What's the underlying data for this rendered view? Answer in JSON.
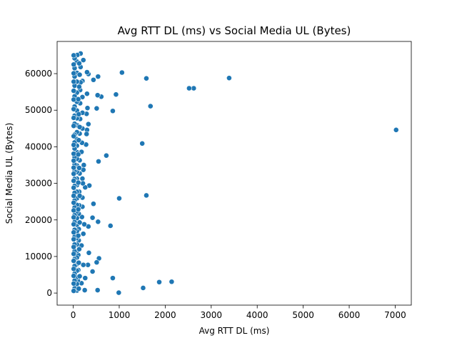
{
  "chart_data": {
    "type": "scatter",
    "title": "Avg RTT DL (ms) vs Social Media UL (Bytes)",
    "xlabel": "Avg RTT DL (ms)",
    "ylabel": "Social Media UL (Bytes)",
    "xlim": [
      -350,
      7350
    ],
    "ylim": [
      -3300,
      68800
    ],
    "xticks": [
      0,
      1000,
      2000,
      3000,
      4000,
      5000,
      6000,
      7000
    ],
    "yticks": [
      0,
      10000,
      20000,
      30000,
      40000,
      50000,
      60000
    ],
    "grid": false,
    "marker_color": "#1f77b4",
    "series": [
      {
        "values": [
          [
            7020,
            44600
          ],
          [
            3390,
            58800
          ],
          [
            2620,
            56000
          ],
          [
            2520,
            56000
          ],
          [
            1680,
            51100
          ],
          [
            1590,
            58700
          ],
          [
            1060,
            60300
          ],
          [
            860,
            49800
          ],
          [
            930,
            54300
          ],
          [
            1500,
            40900
          ],
          [
            1590,
            26700
          ],
          [
            1000,
            25900
          ],
          [
            720,
            37600
          ],
          [
            550,
            36000
          ],
          [
            2140,
            3100
          ],
          [
            1870,
            3000
          ],
          [
            1520,
            1400
          ],
          [
            990,
            100
          ],
          [
            860,
            4100
          ],
          [
            530,
            800
          ],
          [
            810,
            18400
          ],
          [
            540,
            19500
          ],
          [
            420,
            20600
          ],
          [
            330,
            18200
          ],
          [
            240,
            18800
          ],
          [
            440,
            24400
          ],
          [
            350,
            29400
          ],
          [
            260,
            28900
          ],
          [
            200,
            31300
          ],
          [
            560,
            9500
          ],
          [
            510,
            8400
          ],
          [
            420,
            5900
          ],
          [
            340,
            11000
          ],
          [
            320,
            7700
          ],
          [
            260,
            4100
          ],
          [
            220,
            7700
          ],
          [
            250,
            800
          ],
          [
            220,
            16200
          ],
          [
            180,
            13000
          ],
          [
            180,
            2700
          ],
          [
            610,
            53700
          ],
          [
            530,
            54100
          ],
          [
            510,
            50500
          ],
          [
            440,
            58300
          ],
          [
            540,
            59200
          ],
          [
            330,
            59900
          ],
          [
            300,
            60400
          ],
          [
            300,
            54500
          ],
          [
            310,
            50600
          ],
          [
            290,
            49000
          ],
          [
            330,
            46200
          ],
          [
            300,
            44600
          ],
          [
            290,
            43500
          ],
          [
            280,
            40600
          ],
          [
            220,
            63700
          ],
          [
            200,
            58000
          ],
          [
            200,
            53600
          ],
          [
            200,
            49300
          ],
          [
            200,
            45000
          ],
          [
            190,
            41100
          ],
          [
            230,
            35000
          ],
          [
            220,
            33700
          ],
          [
            210,
            30000
          ],
          [
            200,
            26100
          ],
          [
            200,
            23600
          ],
          [
            190,
            20800
          ],
          [
            180,
            38600
          ],
          [
            160,
            65500
          ],
          [
            160,
            61800
          ],
          [
            160,
            57600
          ],
          [
            150,
            55500
          ],
          [
            150,
            51900
          ],
          [
            150,
            47600
          ],
          [
            140,
            43600
          ],
          [
            140,
            36300
          ],
          [
            140,
            32700
          ],
          [
            130,
            27700
          ],
          [
            130,
            24000
          ],
          [
            120,
            21700
          ],
          [
            120,
            17500
          ],
          [
            120,
            14400
          ],
          [
            110,
            10400
          ],
          [
            110,
            6300
          ],
          [
            100,
            3400
          ],
          [
            90,
            65100
          ],
          [
            80,
            63300
          ],
          [
            80,
            60200
          ],
          [
            80,
            57800
          ],
          [
            80,
            54800
          ],
          [
            80,
            52300
          ],
          [
            80,
            49900
          ],
          [
            80,
            47800
          ],
          [
            80,
            45900
          ],
          [
            80,
            44000
          ],
          [
            80,
            42100
          ],
          [
            80,
            40300
          ],
          [
            80,
            38500
          ],
          [
            80,
            36700
          ],
          [
            80,
            34900
          ],
          [
            80,
            33100
          ],
          [
            80,
            31300
          ],
          [
            80,
            29500
          ],
          [
            80,
            27700
          ],
          [
            80,
            25900
          ],
          [
            80,
            24100
          ],
          [
            80,
            22300
          ],
          [
            80,
            20500
          ],
          [
            80,
            18700
          ],
          [
            80,
            16900
          ],
          [
            80,
            15100
          ],
          [
            80,
            13300
          ],
          [
            80,
            11500
          ],
          [
            80,
            9700
          ],
          [
            80,
            7900
          ],
          [
            80,
            6100
          ],
          [
            80,
            4300
          ],
          [
            80,
            2500
          ],
          [
            80,
            700
          ],
          [
            30,
            64200
          ],
          [
            30,
            61500
          ],
          [
            30,
            59200
          ],
          [
            30,
            56700
          ],
          [
            30,
            53800
          ],
          [
            30,
            51000
          ],
          [
            30,
            48500
          ],
          [
            30,
            46300
          ],
          [
            30,
            43300
          ],
          [
            30,
            41200
          ],
          [
            30,
            39500
          ],
          [
            30,
            37200
          ],
          [
            30,
            35200
          ],
          [
            30,
            33300
          ],
          [
            30,
            31200
          ],
          [
            30,
            29300
          ],
          [
            30,
            27400
          ],
          [
            30,
            25300
          ],
          [
            30,
            23400
          ],
          [
            30,
            21300
          ],
          [
            30,
            19400
          ],
          [
            30,
            17300
          ],
          [
            30,
            15400
          ],
          [
            30,
            13300
          ],
          [
            30,
            11400
          ],
          [
            30,
            9300
          ],
          [
            30,
            7400
          ],
          [
            30,
            5300
          ],
          [
            30,
            3400
          ],
          [
            30,
            1300
          ],
          [
            10,
            65000
          ],
          [
            10,
            62500
          ],
          [
            10,
            60100
          ],
          [
            10,
            57800
          ],
          [
            10,
            55300
          ],
          [
            10,
            52900
          ],
          [
            10,
            50300
          ],
          [
            10,
            47900
          ],
          [
            10,
            45700
          ],
          [
            10,
            42900
          ],
          [
            10,
            40500
          ],
          [
            10,
            38100
          ],
          [
            10,
            36200
          ],
          [
            10,
            34300
          ],
          [
            10,
            32600
          ],
          [
            10,
            30700
          ],
          [
            10,
            28800
          ],
          [
            10,
            26600
          ],
          [
            10,
            24700
          ],
          [
            10,
            22600
          ],
          [
            10,
            20700
          ],
          [
            10,
            18800
          ],
          [
            10,
            16600
          ],
          [
            10,
            14700
          ],
          [
            10,
            12600
          ],
          [
            10,
            10700
          ],
          [
            10,
            8800
          ],
          [
            10,
            6600
          ],
          [
            10,
            4700
          ],
          [
            10,
            2600
          ],
          [
            10,
            600
          ],
          [
            130,
            62800
          ],
          [
            140,
            59700
          ],
          [
            130,
            56400
          ],
          [
            110,
            53000
          ],
          [
            120,
            48900
          ],
          [
            140,
            45400
          ],
          [
            120,
            41800
          ],
          [
            110,
            37900
          ],
          [
            130,
            34200
          ],
          [
            110,
            30200
          ],
          [
            140,
            26600
          ],
          [
            110,
            22900
          ],
          [
            140,
            19300
          ],
          [
            110,
            15700
          ],
          [
            130,
            12000
          ],
          [
            120,
            8300
          ],
          [
            140,
            4600
          ],
          [
            120,
            1200
          ]
        ]
      }
    ]
  }
}
